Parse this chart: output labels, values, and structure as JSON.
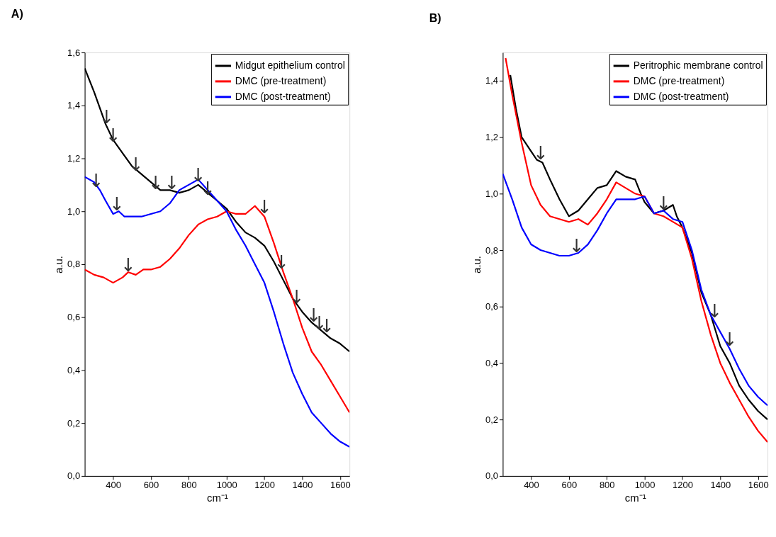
{
  "chart_data": [
    {
      "type": "line",
      "title": "A)",
      "xlabel": "cm⁻¹",
      "ylabel": "a.u.",
      "legend": "top right",
      "grid": false,
      "xlim": [
        250,
        1650
      ],
      "xticks": [
        400,
        600,
        800,
        1000,
        1200,
        1400,
        1600
      ],
      "ylim": [
        0,
        1.6
      ],
      "yticks": [
        {
          "value": 0,
          "label": "0,0"
        },
        {
          "value": 0.2,
          "label": "0,2"
        },
        {
          "value": 0.4,
          "label": "0,4"
        },
        {
          "value": 0.6,
          "label": "0,6"
        },
        {
          "value": 0.8,
          "label": "0,8"
        },
        {
          "value": 1.0,
          "label": "1,0"
        },
        {
          "value": 1.2,
          "label": "1,2"
        },
        {
          "value": 1.4,
          "label": "1,4"
        },
        {
          "value": 1.6,
          "label": "1,6"
        }
      ],
      "series": [
        {
          "name": "Midgut epithelium control",
          "color": "#000000",
          "x": [
            250,
            300,
            360,
            400,
            450,
            500,
            550,
            600,
            650,
            700,
            750,
            800,
            850,
            900,
            950,
            1000,
            1050,
            1100,
            1150,
            1200,
            1250,
            1300,
            1350,
            1400,
            1450,
            1500,
            1550,
            1600,
            1650
          ],
          "values": [
            1.54,
            1.45,
            1.33,
            1.27,
            1.22,
            1.17,
            1.14,
            1.11,
            1.08,
            1.08,
            1.07,
            1.08,
            1.1,
            1.07,
            1.04,
            1.01,
            0.96,
            0.92,
            0.9,
            0.87,
            0.81,
            0.74,
            0.67,
            0.62,
            0.58,
            0.55,
            0.52,
            0.5,
            0.47
          ]
        },
        {
          "name": "DMC (pre-treatment)",
          "color": "#ff0000",
          "x": [
            250,
            300,
            350,
            400,
            450,
            480,
            520,
            560,
            600,
            650,
            700,
            750,
            800,
            850,
            900,
            950,
            1000,
            1050,
            1100,
            1150,
            1200,
            1250,
            1300,
            1350,
            1400,
            1450,
            1500,
            1550,
            1600,
            1650
          ],
          "values": [
            0.78,
            0.76,
            0.75,
            0.73,
            0.75,
            0.77,
            0.76,
            0.78,
            0.78,
            0.79,
            0.82,
            0.86,
            0.91,
            0.95,
            0.97,
            0.98,
            1.0,
            0.99,
            0.99,
            1.02,
            0.98,
            0.88,
            0.77,
            0.67,
            0.56,
            0.47,
            0.42,
            0.36,
            0.3,
            0.24
          ]
        },
        {
          "name": "DMC (post-treatment)",
          "color": "#0000ff",
          "x": [
            250,
            300,
            330,
            360,
            400,
            430,
            460,
            500,
            550,
            600,
            650,
            700,
            750,
            800,
            850,
            900,
            950,
            1000,
            1050,
            1100,
            1150,
            1200,
            1250,
            1300,
            1350,
            1400,
            1450,
            1500,
            1550,
            1600,
            1650
          ],
          "values": [
            1.13,
            1.11,
            1.08,
            1.04,
            0.99,
            1.0,
            0.98,
            0.98,
            0.98,
            0.99,
            1.0,
            1.03,
            1.08,
            1.1,
            1.12,
            1.08,
            1.04,
            1.0,
            0.93,
            0.87,
            0.8,
            0.73,
            0.62,
            0.5,
            0.39,
            0.31,
            0.24,
            0.2,
            0.16,
            0.13,
            0.11
          ]
        }
      ],
      "annotations": [
        {
          "text": "↓",
          "x": 365,
          "y": 1.33
        },
        {
          "text": "↓",
          "x": 400,
          "y": 1.26
        },
        {
          "text": "↓",
          "x": 520,
          "y": 1.15
        },
        {
          "text": "↓",
          "x": 625,
          "y": 1.08
        },
        {
          "text": "↓",
          "x": 710,
          "y": 1.08
        },
        {
          "text": "↓",
          "x": 850,
          "y": 1.11
        },
        {
          "text": "↓",
          "x": 900,
          "y": 1.06
        },
        {
          "text": "↓",
          "x": 310,
          "y": 1.09
        },
        {
          "text": "↓",
          "x": 420,
          "y": 1.0
        },
        {
          "text": "↓",
          "x": 480,
          "y": 0.77
        },
        {
          "text": "↓",
          "x": 1200,
          "y": 0.99
        },
        {
          "text": "↓",
          "x": 1290,
          "y": 0.78
        },
        {
          "text": "↓",
          "x": 1370,
          "y": 0.65
        },
        {
          "text": "↓",
          "x": 1460,
          "y": 0.58
        },
        {
          "text": "↓",
          "x": 1490,
          "y": 0.55
        },
        {
          "text": "↓",
          "x": 1530,
          "y": 0.54
        }
      ]
    },
    {
      "type": "line",
      "title": "B)",
      "xlabel": "cm⁻¹",
      "ylabel": "a.u.",
      "legend": "top right",
      "grid": false,
      "xlim": [
        250,
        1650
      ],
      "xticks": [
        400,
        600,
        800,
        1000,
        1200,
        1400,
        1600
      ],
      "ylim": [
        0,
        1.5
      ],
      "yticks": [
        {
          "value": 0,
          "label": "0,0"
        },
        {
          "value": 0.2,
          "label": "0,2"
        },
        {
          "value": 0.4,
          "label": "0,4"
        },
        {
          "value": 0.6,
          "label": "0,6"
        },
        {
          "value": 0.8,
          "label": "0,8"
        },
        {
          "value": 1.0,
          "label": "1,0"
        },
        {
          "value": 1.2,
          "label": "1,2"
        },
        {
          "value": 1.4,
          "label": "1,4"
        }
      ],
      "series": [
        {
          "name": "Peritrophic membrane control",
          "color": "#000000",
          "x": [
            290,
            320,
            350,
            400,
            430,
            460,
            500,
            550,
            600,
            650,
            700,
            750,
            800,
            850,
            900,
            950,
            980,
            1000,
            1050,
            1100,
            1150,
            1170,
            1200,
            1250,
            1300,
            1350,
            1400,
            1450,
            1500,
            1550,
            1600,
            1650
          ],
          "values": [
            1.42,
            1.3,
            1.2,
            1.15,
            1.12,
            1.11,
            1.05,
            0.98,
            0.92,
            0.94,
            0.98,
            1.02,
            1.03,
            1.08,
            1.06,
            1.05,
            1.0,
            0.97,
            0.93,
            0.94,
            0.96,
            0.92,
            0.88,
            0.79,
            0.65,
            0.57,
            0.46,
            0.4,
            0.32,
            0.27,
            0.23,
            0.2
          ]
        },
        {
          "name": "DMC (pre-treatment)",
          "color": "#ff0000",
          "x": [
            265,
            300,
            350,
            400,
            450,
            500,
            550,
            600,
            650,
            700,
            750,
            800,
            850,
            900,
            950,
            1000,
            1050,
            1100,
            1150,
            1200,
            1250,
            1300,
            1350,
            1400,
            1450,
            1500,
            1550,
            1600,
            1650
          ],
          "values": [
            1.48,
            1.35,
            1.18,
            1.03,
            0.96,
            0.92,
            0.91,
            0.9,
            0.91,
            0.89,
            0.93,
            0.98,
            1.04,
            1.02,
            1.0,
            0.99,
            0.93,
            0.92,
            0.9,
            0.88,
            0.77,
            0.62,
            0.5,
            0.4,
            0.33,
            0.27,
            0.21,
            0.16,
            0.12
          ]
        },
        {
          "name": "DMC (post-treatment)",
          "color": "#0000ff",
          "x": [
            250,
            300,
            350,
            400,
            450,
            500,
            550,
            600,
            650,
            700,
            750,
            800,
            850,
            900,
            950,
            1000,
            1050,
            1100,
            1150,
            1200,
            1250,
            1300,
            1350,
            1400,
            1450,
            1500,
            1550,
            1600,
            1650
          ],
          "values": [
            1.07,
            0.98,
            0.88,
            0.82,
            0.8,
            0.79,
            0.78,
            0.78,
            0.79,
            0.82,
            0.87,
            0.93,
            0.98,
            0.98,
            0.98,
            0.99,
            0.93,
            0.94,
            0.91,
            0.9,
            0.8,
            0.66,
            0.57,
            0.51,
            0.45,
            0.38,
            0.32,
            0.28,
            0.25
          ]
        }
      ],
      "annotations": [
        {
          "text": "↓",
          "x": 450,
          "y": 1.12
        },
        {
          "text": "↓",
          "x": 640,
          "y": 0.79
        },
        {
          "text": "↓",
          "x": 1100,
          "y": 0.94
        },
        {
          "text": "↓",
          "x": 1370,
          "y": 0.56
        },
        {
          "text": "↓",
          "x": 1450,
          "y": 0.46
        }
      ]
    }
  ]
}
